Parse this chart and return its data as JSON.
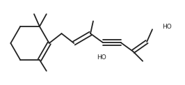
{
  "background": "#ffffff",
  "line_color": "#222222",
  "line_width": 1.3,
  "text_color": "#222222",
  "font_size": 6.5,
  "figsize": [
    2.66,
    1.22
  ],
  "dpi": 100
}
